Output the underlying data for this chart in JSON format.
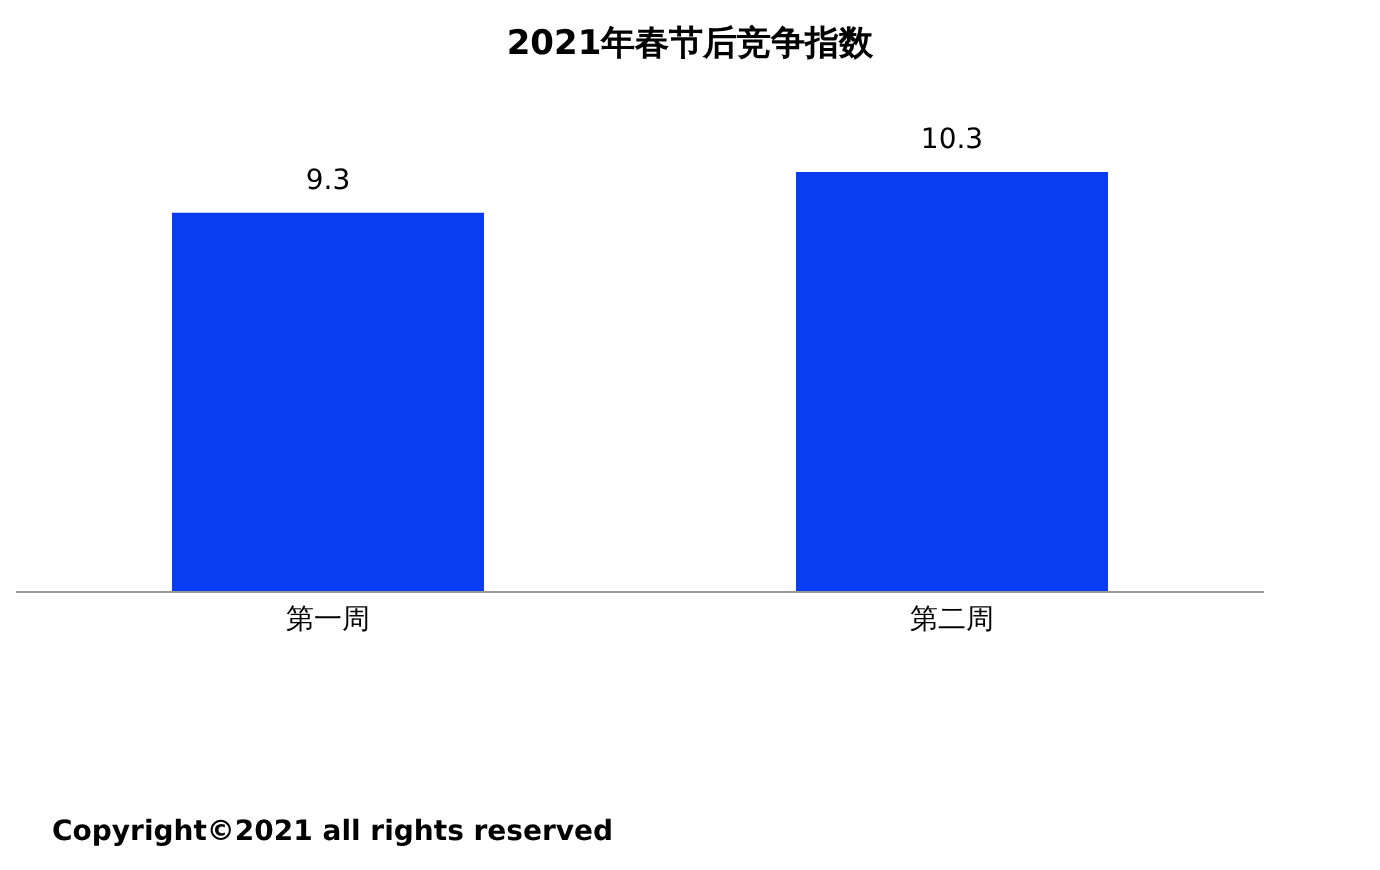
{
  "chart_data": {
    "type": "bar",
    "title": "2021年春节后竞争指数",
    "categories": [
      "第一周",
      "第二周"
    ],
    "values": [
      9.3,
      10.3
    ],
    "color": "#0a3cf2",
    "tick_labels": "x",
    "data_labels": true,
    "annotations": [
      "Copyright©2021 all rights reserved"
    ]
  }
}
